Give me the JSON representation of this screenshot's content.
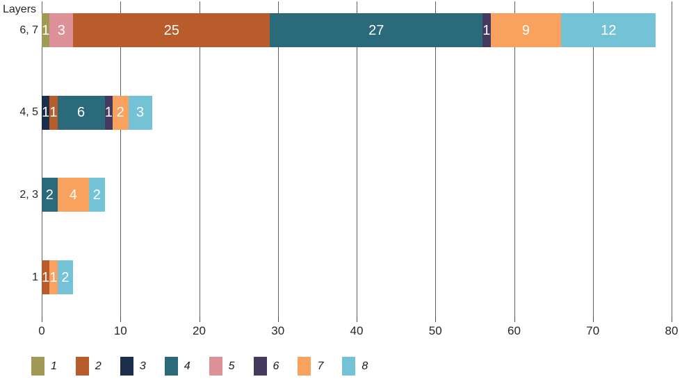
{
  "chart_data": {
    "type": "bar",
    "orientation": "horizontal",
    "stacked": true,
    "axis_title": "Layers",
    "categories": [
      "6, 7",
      "4, 5",
      "2, 3",
      "1"
    ],
    "xticks": [
      0,
      10,
      20,
      30,
      40,
      50,
      60,
      70,
      80
    ],
    "xlim": [
      0,
      80
    ],
    "grid": true,
    "legend_position": "bottom",
    "series_legend": [
      {
        "name": "1",
        "color": "#a09a56"
      },
      {
        "name": "2",
        "color": "#b85c2b"
      },
      {
        "name": "3",
        "color": "#1b2f4d"
      },
      {
        "name": "4",
        "color": "#2b6a7a"
      },
      {
        "name": "5",
        "color": "#dd9098"
      },
      {
        "name": "6",
        "color": "#45395f"
      },
      {
        "name": "7",
        "color": "#f9a25f"
      },
      {
        "name": "8",
        "color": "#74c2d6"
      }
    ],
    "bars": [
      {
        "category": "6, 7",
        "segments": [
          {
            "series": "1",
            "value": 1
          },
          {
            "series": "5",
            "value": 3
          },
          {
            "series": "2",
            "value": 25
          },
          {
            "series": "4",
            "value": 27
          },
          {
            "series": "6",
            "value": 1
          },
          {
            "series": "7",
            "value": 9
          },
          {
            "series": "8",
            "value": 12
          }
        ]
      },
      {
        "category": "4, 5",
        "segments": [
          {
            "series": "3",
            "value": 1
          },
          {
            "series": "2",
            "value": 1
          },
          {
            "series": "4",
            "value": 6
          },
          {
            "series": "6",
            "value": 1
          },
          {
            "series": "7",
            "value": 2
          },
          {
            "series": "8",
            "value": 3
          }
        ]
      },
      {
        "category": "2, 3",
        "segments": [
          {
            "series": "4",
            "value": 2
          },
          {
            "series": "7",
            "value": 4
          },
          {
            "series": "8",
            "value": 2
          }
        ]
      },
      {
        "category": "1",
        "segments": [
          {
            "series": "2",
            "value": 1
          },
          {
            "series": "7",
            "value": 1
          },
          {
            "series": "8",
            "value": 2
          }
        ]
      }
    ]
  },
  "layout_colors": {
    "background": "#ffffff",
    "gridline": "#5f5f5f",
    "text": "#262626",
    "bar_label": "#ffffff"
  }
}
